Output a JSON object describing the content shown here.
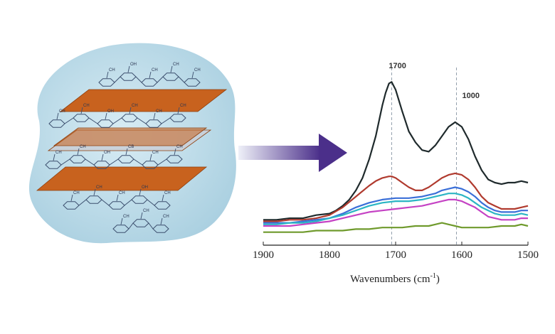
{
  "illustration": {
    "blob_color": "#a9cfe0",
    "sheet_color": "#c8621e",
    "sheet_edge_color": "#8f3f0d",
    "bond_color": "#3c4f6e",
    "atom_labels": [
      "CH",
      "OH",
      "CH",
      "CH",
      "CH",
      "CH",
      "CH",
      "OH",
      "CH",
      "CH",
      "CH",
      "CH",
      "CH",
      "OH",
      "CB",
      "CH",
      "CH",
      "CH",
      "CH",
      "CH",
      "OH",
      "CH",
      "CH",
      "CH",
      "CH",
      "C",
      "CH",
      "CH",
      "OH",
      "CH"
    ]
  },
  "arrow": {
    "color": "#4b2f8a",
    "fade_color": "#eef0f8"
  },
  "chart_data": {
    "type": "line",
    "x_axis": {
      "label_main": "Wavenumbers (cm",
      "label_sup": "-1",
      "label_end": ")",
      "ticks": [
        1900,
        1800,
        1700,
        1600,
        1500
      ],
      "tick_labels": [
        "1900",
        "1800",
        "1700",
        "1600",
        "1500"
      ],
      "range": [
        1900,
        1500
      ],
      "reversed": true
    },
    "y_axis": {
      "range": [
        0,
        1
      ],
      "visible": false
    },
    "grid": false,
    "reference_lines": [
      {
        "x": 1706,
        "label": "1700"
      },
      {
        "x": 1608,
        "label": "1000"
      }
    ],
    "series": [
      {
        "color": "#1f2a2c",
        "x": [
          1900,
          1880,
          1860,
          1840,
          1820,
          1800,
          1790,
          1780,
          1770,
          1760,
          1750,
          1740,
          1730,
          1720,
          1715,
          1710,
          1706,
          1700,
          1690,
          1680,
          1670,
          1660,
          1650,
          1640,
          1630,
          1620,
          1610,
          1600,
          1590,
          1580,
          1570,
          1560,
          1550,
          1540,
          1530,
          1520,
          1510,
          1500
        ],
        "y": [
          0.04,
          0.04,
          0.05,
          0.05,
          0.07,
          0.08,
          0.1,
          0.13,
          0.17,
          0.23,
          0.31,
          0.43,
          0.58,
          0.78,
          0.86,
          0.92,
          0.93,
          0.88,
          0.74,
          0.61,
          0.54,
          0.49,
          0.48,
          0.52,
          0.58,
          0.64,
          0.67,
          0.64,
          0.56,
          0.45,
          0.36,
          0.3,
          0.28,
          0.27,
          0.28,
          0.28,
          0.29,
          0.28
        ]
      },
      {
        "color": "#b03a2e",
        "x": [
          1900,
          1880,
          1860,
          1840,
          1820,
          1800,
          1780,
          1760,
          1740,
          1730,
          1720,
          1710,
          1706,
          1700,
          1690,
          1680,
          1670,
          1660,
          1650,
          1640,
          1630,
          1620,
          1610,
          1600,
          1590,
          1580,
          1570,
          1560,
          1550,
          1540,
          1530,
          1520,
          1510,
          1500
        ],
        "y": [
          0.03,
          0.03,
          0.04,
          0.04,
          0.05,
          0.07,
          0.12,
          0.19,
          0.26,
          0.29,
          0.31,
          0.32,
          0.32,
          0.31,
          0.28,
          0.25,
          0.23,
          0.23,
          0.25,
          0.28,
          0.31,
          0.33,
          0.34,
          0.33,
          0.3,
          0.25,
          0.19,
          0.15,
          0.13,
          0.11,
          0.11,
          0.11,
          0.12,
          0.13
        ]
      },
      {
        "color": "#3a6fd8",
        "x": [
          1900,
          1880,
          1860,
          1840,
          1820,
          1800,
          1780,
          1760,
          1740,
          1720,
          1700,
          1680,
          1660,
          1640,
          1630,
          1620,
          1610,
          1600,
          1590,
          1580,
          1570,
          1560,
          1550,
          1540,
          1530,
          1520,
          1510,
          1500
        ],
        "y": [
          0.02,
          0.02,
          0.02,
          0.03,
          0.04,
          0.05,
          0.08,
          0.12,
          0.15,
          0.17,
          0.18,
          0.18,
          0.19,
          0.21,
          0.23,
          0.24,
          0.25,
          0.24,
          0.22,
          0.19,
          0.15,
          0.12,
          0.1,
          0.09,
          0.09,
          0.09,
          0.1,
          0.1
        ]
      },
      {
        "color": "#2cb5c4",
        "x": [
          1900,
          1880,
          1860,
          1840,
          1820,
          1800,
          1780,
          1760,
          1740,
          1720,
          1700,
          1680,
          1660,
          1640,
          1630,
          1620,
          1610,
          1600,
          1590,
          1580,
          1570,
          1560,
          1550,
          1540,
          1530,
          1520,
          1510,
          1500
        ],
        "y": [
          0.01,
          0.01,
          0.02,
          0.02,
          0.03,
          0.05,
          0.07,
          0.1,
          0.13,
          0.15,
          0.16,
          0.16,
          0.17,
          0.19,
          0.2,
          0.21,
          0.21,
          0.2,
          0.18,
          0.15,
          0.12,
          0.1,
          0.08,
          0.07,
          0.07,
          0.07,
          0.08,
          0.07
        ]
      },
      {
        "color": "#c542c4",
        "x": [
          1900,
          1880,
          1860,
          1840,
          1820,
          1800,
          1780,
          1760,
          1740,
          1720,
          1700,
          1680,
          1660,
          1640,
          1630,
          1620,
          1610,
          1600,
          1590,
          1580,
          1570,
          1560,
          1550,
          1540,
          1530,
          1520,
          1510,
          1500
        ],
        "y": [
          0.0,
          0.0,
          0.0,
          0.01,
          0.02,
          0.03,
          0.05,
          0.07,
          0.09,
          0.1,
          0.11,
          0.12,
          0.13,
          0.15,
          0.16,
          0.17,
          0.17,
          0.16,
          0.14,
          0.12,
          0.09,
          0.06,
          0.05,
          0.04,
          0.04,
          0.04,
          0.05,
          0.05
        ]
      },
      {
        "color": "#6f9a2c",
        "x": [
          1900,
          1880,
          1860,
          1840,
          1820,
          1800,
          1780,
          1760,
          1740,
          1720,
          1706,
          1690,
          1670,
          1650,
          1640,
          1630,
          1620,
          1610,
          1600,
          1590,
          1580,
          1560,
          1540,
          1520,
          1510,
          1500
        ],
        "y": [
          -0.04,
          -0.04,
          -0.04,
          -0.04,
          -0.03,
          -0.03,
          -0.03,
          -0.02,
          -0.02,
          -0.01,
          -0.01,
          -0.01,
          0.0,
          0.0,
          0.01,
          0.02,
          0.01,
          0.0,
          -0.01,
          -0.01,
          -0.01,
          -0.01,
          0.0,
          0.0,
          0.01,
          0.0
        ]
      }
    ]
  }
}
